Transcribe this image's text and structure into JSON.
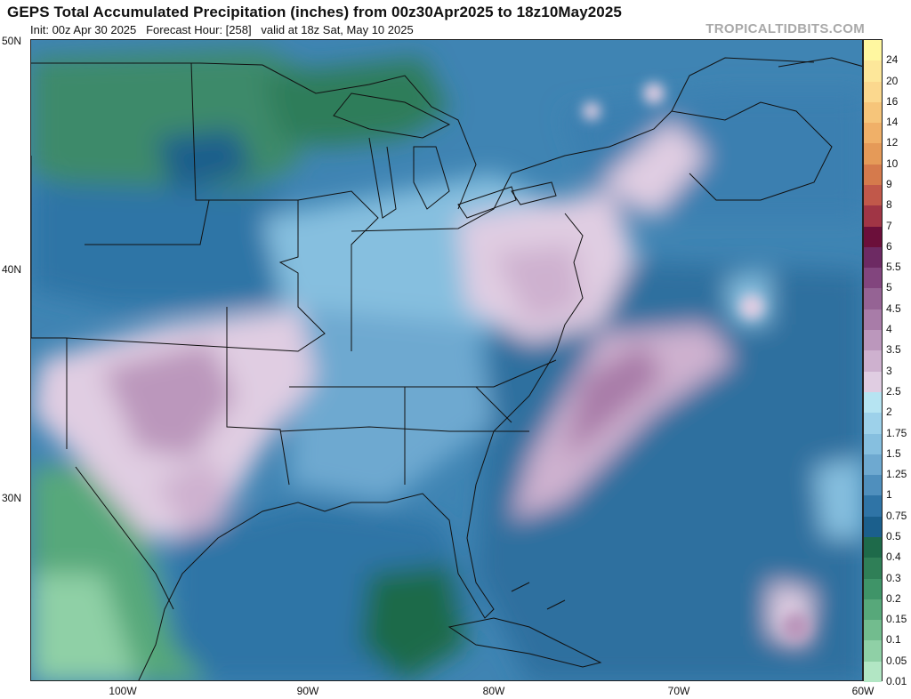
{
  "header": {
    "title": "GEPS Total Accumulated Precipitation (inches) from 00z30Apr2025 to 18z10May2025",
    "subtitle": "Init: 00z Apr 30 2025   Forecast Hour: [258]   valid at 18z Sat, May 10 2025",
    "brand": "TROPICALTIDBITS.COM"
  },
  "axes": {
    "lat_labels": [
      "50N",
      "40N",
      "30N"
    ],
    "lon_labels": [
      "100W",
      "90W",
      "80W",
      "70W",
      "60W"
    ]
  },
  "colorbar": {
    "labels": [
      "24",
      "20",
      "16",
      "14",
      "12",
      "10",
      "9",
      "8",
      "7",
      "6",
      "5.5",
      "5",
      "4.5",
      "4",
      "3.5",
      "3",
      "2.5",
      "2",
      "1.75",
      "1.5",
      "1.25",
      "1",
      "0.75",
      "0.5",
      "0.4",
      "0.3",
      "0.2",
      "0.15",
      "0.1",
      "0.05",
      "0.01"
    ],
    "colors": [
      "#fff7a0",
      "#fde79a",
      "#fbd88e",
      "#f6c57a",
      "#f0b068",
      "#e59a58",
      "#d57a4c",
      "#c1584a",
      "#a03545",
      "#6b0f3a",
      "#6d2a63",
      "#82457e",
      "#956394",
      "#a87ca8",
      "#bb97bc",
      "#ceb1cf",
      "#e0cde2",
      "#b6e4f2",
      "#9dd1ea",
      "#86bfdf",
      "#6ea9d0",
      "#4f8fbd",
      "#2f74a6",
      "#1b5f8c",
      "#1e6a4a",
      "#2f7f57",
      "#3f9468",
      "#57a87a",
      "#72bc8e",
      "#8fd0a6",
      "#b2e6c4"
    ]
  }
}
